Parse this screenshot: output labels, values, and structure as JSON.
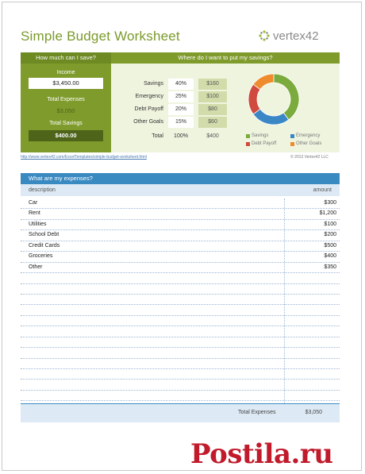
{
  "title": "Simple Budget Worksheet",
  "logo": {
    "text": "vertex42",
    "icon": "vertex42-logo-icon"
  },
  "savings_header": "How much can I save?",
  "allocation_header": "Where do I want to put my savings?",
  "left_panel": {
    "income_label": "Income",
    "income_value": "$3,450.00",
    "total_expenses_label": "Total Expenses",
    "total_expenses_value": "$3,050",
    "total_savings_label": "Total Savings",
    "total_savings_value": "$400.00"
  },
  "allocation": [
    {
      "label": "Savings",
      "percent": "40%",
      "amount": "$160"
    },
    {
      "label": "Emergency",
      "percent": "25%",
      "amount": "$100"
    },
    {
      "label": "Debt Payoff",
      "percent": "20%",
      "amount": "$80"
    },
    {
      "label": "Other Goals",
      "percent": "15%",
      "amount": "$60"
    }
  ],
  "allocation_total": {
    "label": "Total",
    "percent": "100%",
    "amount": "$400"
  },
  "chart_data": {
    "type": "pie",
    "donut": true,
    "categories": [
      "Savings",
      "Emergency",
      "Debt Payoff",
      "Other Goals"
    ],
    "values": [
      40,
      25,
      20,
      15
    ],
    "colors": [
      "#7aab3c",
      "#3b87c6",
      "#d04a3e",
      "#ee8b2d"
    ],
    "legend_placement": "bottom"
  },
  "url": "http://www.vertex42.com/ExcelTemplates/simple-budget-worksheet.html",
  "copyright": "© 2013 Vertex42 LLC",
  "expenses_header": "What are my expenses?",
  "columns": {
    "description": "description",
    "amount": "amount"
  },
  "expenses": [
    {
      "description": "Car",
      "amount": "$300"
    },
    {
      "description": "Rent",
      "amount": "$1,200"
    },
    {
      "description": "Utilities",
      "amount": "$100"
    },
    {
      "description": "School Debt",
      "amount": "$200"
    },
    {
      "description": "Credit Cards",
      "amount": "$500"
    },
    {
      "description": "Groceries",
      "amount": "$400"
    },
    {
      "description": "Other",
      "amount": "$350"
    },
    {
      "description": "",
      "amount": ""
    },
    {
      "description": "",
      "amount": ""
    },
    {
      "description": "",
      "amount": ""
    },
    {
      "description": "",
      "amount": ""
    },
    {
      "description": "",
      "amount": ""
    },
    {
      "description": "",
      "amount": ""
    },
    {
      "description": "",
      "amount": ""
    },
    {
      "description": "",
      "amount": ""
    },
    {
      "description": "",
      "amount": ""
    },
    {
      "description": "",
      "amount": ""
    },
    {
      "description": "",
      "amount": ""
    },
    {
      "description": "",
      "amount": ""
    }
  ],
  "total_expenses_row": {
    "label": "Total Expenses",
    "value": "$3,050"
  },
  "watermark": "Postila.ru"
}
